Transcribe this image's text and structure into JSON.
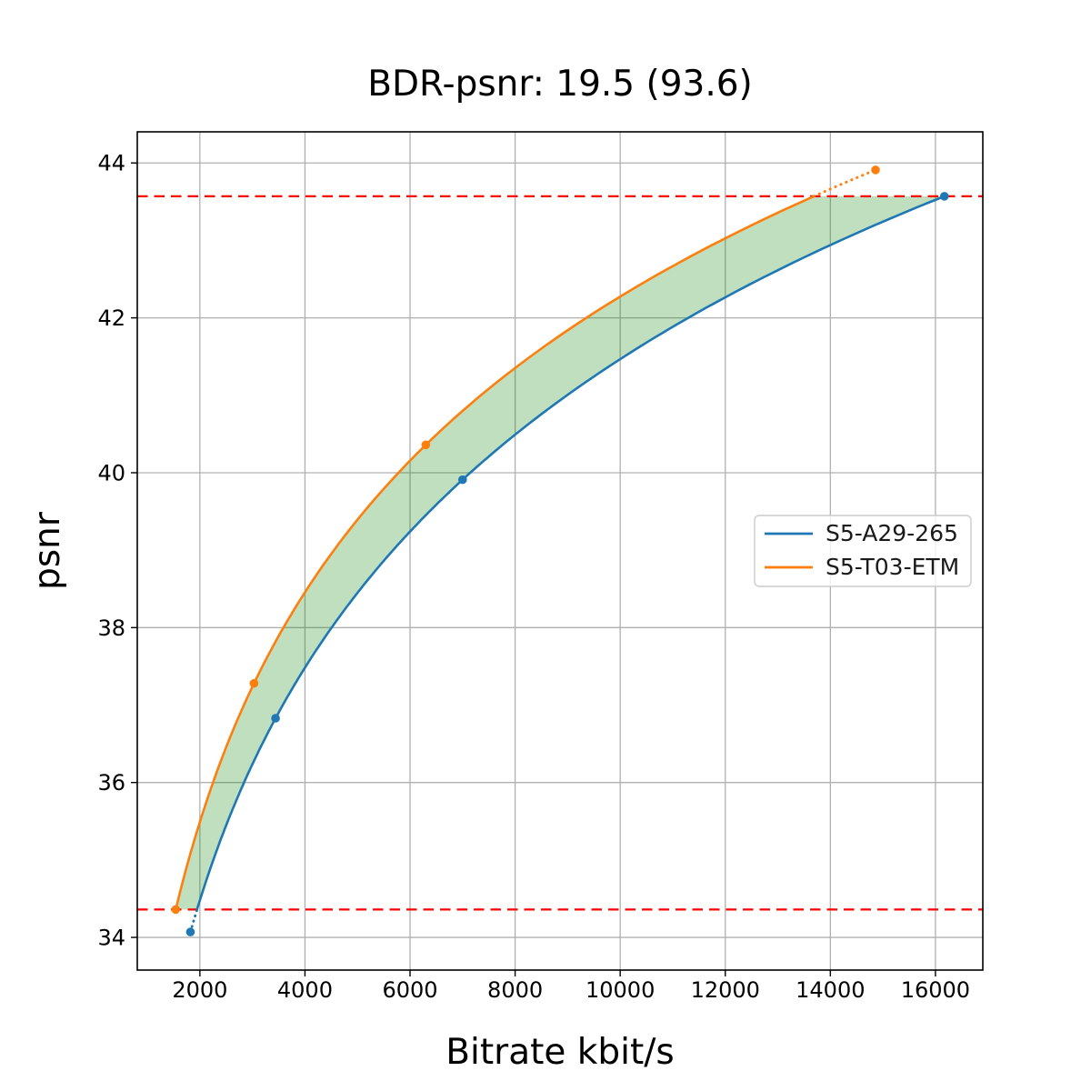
{
  "chart_data": {
    "type": "line",
    "title": "BDR-psnr: 19.5 (93.6)",
    "xlabel": "Bitrate kbit/s",
    "ylabel": "psnr",
    "x_ticks": [
      2000,
      4000,
      6000,
      8000,
      10000,
      12000,
      14000,
      16000
    ],
    "y_ticks": [
      34,
      36,
      38,
      40,
      42,
      44
    ],
    "grid": true,
    "grid_color": "#b0b0b0",
    "legend_position": "center right",
    "series": [
      {
        "name": "S5-A29-265",
        "color": "#1f77b4",
        "x": [
          1820,
          3440,
          7000,
          16170
        ],
        "y": [
          34.07,
          36.83,
          39.91,
          43.57
        ]
      },
      {
        "name": "S5-T03-ETM",
        "color": "#ff7f0e",
        "x": [
          1540,
          3030,
          6300,
          14860
        ],
        "y": [
          34.36,
          37.28,
          40.36,
          43.91
        ]
      }
    ],
    "overlap_band": {
      "low_psnr": 34.36,
      "high_psnr": 43.57,
      "line_color": "#ff0000",
      "line_style": "dashed"
    },
    "fill_color": "#008000",
    "fill_opacity": 0.25,
    "axis_margin": 0.05,
    "xlim": [
      808,
      16902
    ],
    "ylim": [
      33.58,
      44.4
    ]
  }
}
